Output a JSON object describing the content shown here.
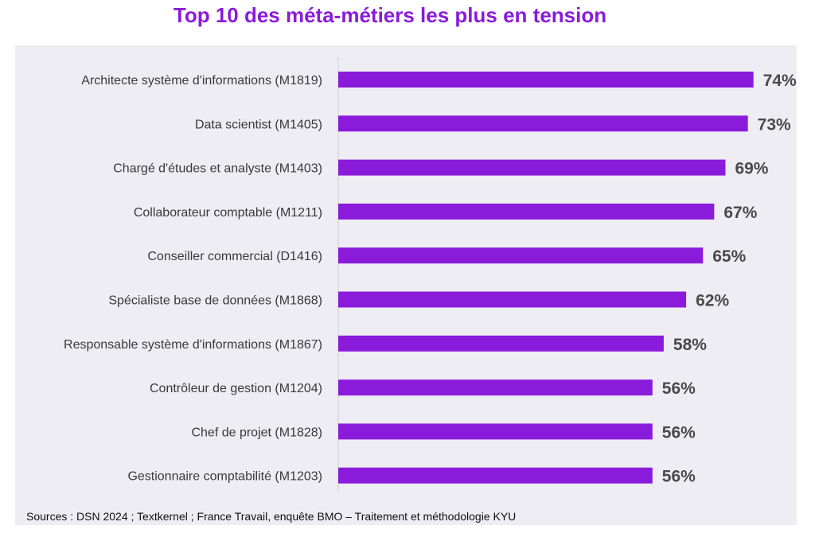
{
  "colors": {
    "accent": "#8A1BDB",
    "title": "#8A1BDB",
    "panel_background": "#EDEDF3",
    "value_label": "#4A4A4A",
    "category_label": "#3A3A3A",
    "axis_line": "#CFCFD8"
  },
  "chart_data": {
    "type": "bar",
    "orientation": "horizontal",
    "title": "Top 10 des méta-métiers les plus en tension",
    "xlabel": "",
    "ylabel": "",
    "xlim": [
      0,
      100
    ],
    "grid": false,
    "legend": "none",
    "value_suffix": "%",
    "categories": [
      "Architecte système d'informations (M1819)",
      "Data scientist (M1405)",
      "Chargé d'études et analyste (M1403)",
      "Collaborateur comptable (M1211)",
      "Conseiller commercial (D1416)",
      "Spécialiste base de données (M1868)",
      "Responsable système d'informations (M1867)",
      "Contrôleur de gestion (M1204)",
      "Chef de projet (M1828)",
      "Gestionnaire comptabilité (M1203)"
    ],
    "values": [
      74,
      73,
      69,
      67,
      65,
      62,
      58,
      56,
      56,
      56
    ],
    "value_labels": [
      "74%",
      "73%",
      "69%",
      "67%",
      "65%",
      "62%",
      "58%",
      "56%",
      "56%",
      "56%"
    ]
  },
  "footer": {
    "source": "Sources : DSN 2024 ; Textkernel ; France Travail, enquête BMO – Traitement et méthodologie KYU"
  }
}
